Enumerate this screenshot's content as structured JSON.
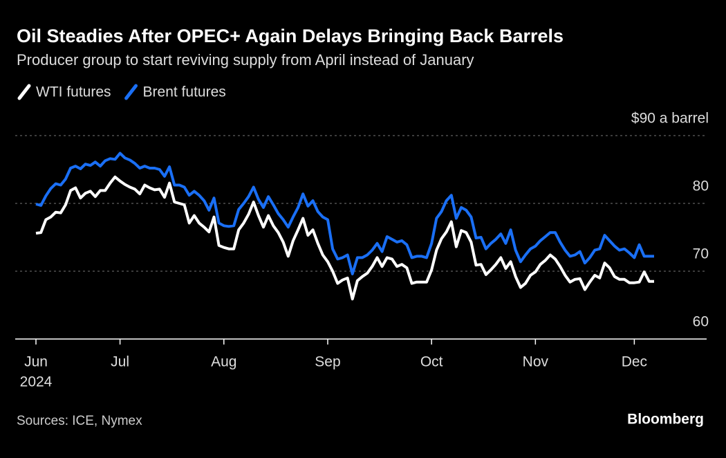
{
  "chart_data": {
    "type": "line",
    "title": "Oil Steadies After OPEC+ Again Delays Bringing Back Barrels",
    "subtitle": "Producer group to start reviving supply from April instead of January",
    "x_year_label": "2024",
    "source": "Sources: ICE, Nymex",
    "brand": "Bloomberg",
    "categories": [
      "Jun",
      null,
      null,
      null,
      null,
      null,
      null,
      null,
      null,
      null,
      null,
      null,
      null,
      null,
      null,
      null,
      null,
      "Jul",
      null,
      null,
      null,
      null,
      null,
      null,
      null,
      null,
      null,
      null,
      null,
      null,
      null,
      null,
      null,
      null,
      null,
      null,
      null,
      null,
      "Aug",
      null,
      null,
      null,
      null,
      null,
      null,
      null,
      null,
      null,
      null,
      null,
      null,
      null,
      null,
      null,
      null,
      null,
      null,
      null,
      null,
      "Sep",
      null,
      null,
      null,
      null,
      null,
      null,
      null,
      null,
      null,
      null,
      null,
      null,
      null,
      null,
      null,
      null,
      null,
      null,
      null,
      null,
      "Oct",
      null,
      null,
      null,
      null,
      null,
      null,
      null,
      null,
      null,
      null,
      null,
      null,
      null,
      null,
      null,
      null,
      null,
      null,
      null,
      null,
      "Nov",
      null,
      null,
      null,
      null,
      null,
      null,
      null,
      null,
      null,
      null,
      null,
      null,
      null,
      null,
      null,
      null,
      null,
      null,
      null,
      "Dec",
      null,
      null,
      null,
      null
    ],
    "series": [
      {
        "name": "WTI futures",
        "color": "#ffffff",
        "values": [
          75.6,
          75.7,
          77.6,
          78.0,
          78.7,
          78.6,
          79.8,
          81.9,
          82.3,
          80.8,
          81.5,
          81.8,
          81.0,
          81.9,
          81.9,
          83.0,
          83.9,
          83.3,
          82.8,
          82.4,
          82.1,
          81.4,
          82.7,
          82.3,
          82.0,
          82.1,
          80.9,
          83.0,
          80.2,
          80.0,
          79.8,
          77.1,
          78.2,
          77.1,
          76.5,
          75.8,
          78.0,
          73.8,
          73.5,
          73.3,
          73.3,
          76.1,
          77.1,
          78.4,
          80.2,
          78.2,
          76.5,
          78.2,
          76.7,
          75.7,
          74.3,
          72.2,
          74.5,
          76.1,
          77.8,
          75.3,
          76.1,
          74.1,
          72.4,
          71.4,
          70.0,
          68.2,
          68.7,
          69.0,
          65.9,
          68.6,
          69.2,
          69.7,
          70.7,
          72.0,
          70.7,
          72.0,
          71.8,
          70.7,
          71.0,
          70.5,
          68.2,
          68.4,
          68.4,
          68.4,
          70.2,
          73.1,
          74.8,
          75.8,
          77.3,
          73.6,
          76.0,
          75.7,
          74.3,
          70.9,
          71.0,
          69.5,
          70.2,
          71.0,
          72.0,
          70.4,
          71.4,
          69.2,
          67.6,
          68.2,
          69.4,
          69.9,
          71.0,
          71.6,
          72.4,
          71.8,
          70.7,
          69.4,
          68.4,
          68.8,
          68.9,
          67.3,
          68.4,
          69.4,
          69.0,
          71.2,
          70.5,
          69.2,
          68.8,
          68.8,
          68.3,
          68.3,
          68.4,
          69.9,
          68.5,
          68.5
        ]
      },
      {
        "name": "Brent futures",
        "color": "#1a6ff5",
        "values": [
          79.9,
          79.7,
          81.1,
          82.2,
          82.9,
          82.7,
          83.6,
          85.2,
          85.5,
          85.1,
          85.8,
          85.6,
          86.1,
          85.5,
          86.3,
          86.6,
          86.5,
          87.4,
          86.7,
          86.4,
          85.9,
          85.2,
          85.5,
          85.2,
          85.2,
          85.0,
          84.0,
          85.4,
          82.7,
          82.7,
          82.4,
          81.2,
          81.8,
          81.2,
          80.4,
          79.0,
          80.8,
          77.1,
          76.7,
          76.6,
          76.7,
          79.1,
          80.0,
          81.0,
          82.4,
          80.6,
          79.4,
          81.0,
          79.8,
          78.5,
          77.6,
          76.5,
          78.0,
          79.4,
          81.4,
          79.6,
          80.4,
          78.8,
          78.0,
          77.6,
          73.3,
          71.8,
          72.0,
          72.4,
          69.6,
          72.0,
          72.0,
          72.4,
          73.1,
          74.1,
          72.9,
          75.1,
          74.7,
          74.3,
          74.5,
          73.9,
          72.0,
          72.2,
          72.2,
          72.0,
          74.1,
          77.8,
          78.8,
          80.4,
          81.2,
          77.8,
          79.4,
          79.0,
          78.0,
          74.9,
          75.0,
          73.3,
          74.1,
          74.7,
          75.5,
          74.1,
          76.1,
          73.1,
          71.4,
          72.4,
          73.3,
          73.7,
          74.5,
          75.1,
          75.7,
          75.7,
          74.3,
          73.1,
          72.2,
          72.4,
          72.9,
          71.2,
          72.0,
          73.1,
          73.3,
          75.3,
          74.5,
          73.7,
          73.1,
          73.3,
          72.7,
          72.0,
          73.9,
          72.2,
          72.2,
          72.2
        ]
      }
    ],
    "ylim": [
      60,
      90
    ],
    "yticks": [
      60,
      70,
      80,
      {
        "value": 90,
        "label": "$90 a barrel"
      }
    ],
    "grid": true
  }
}
